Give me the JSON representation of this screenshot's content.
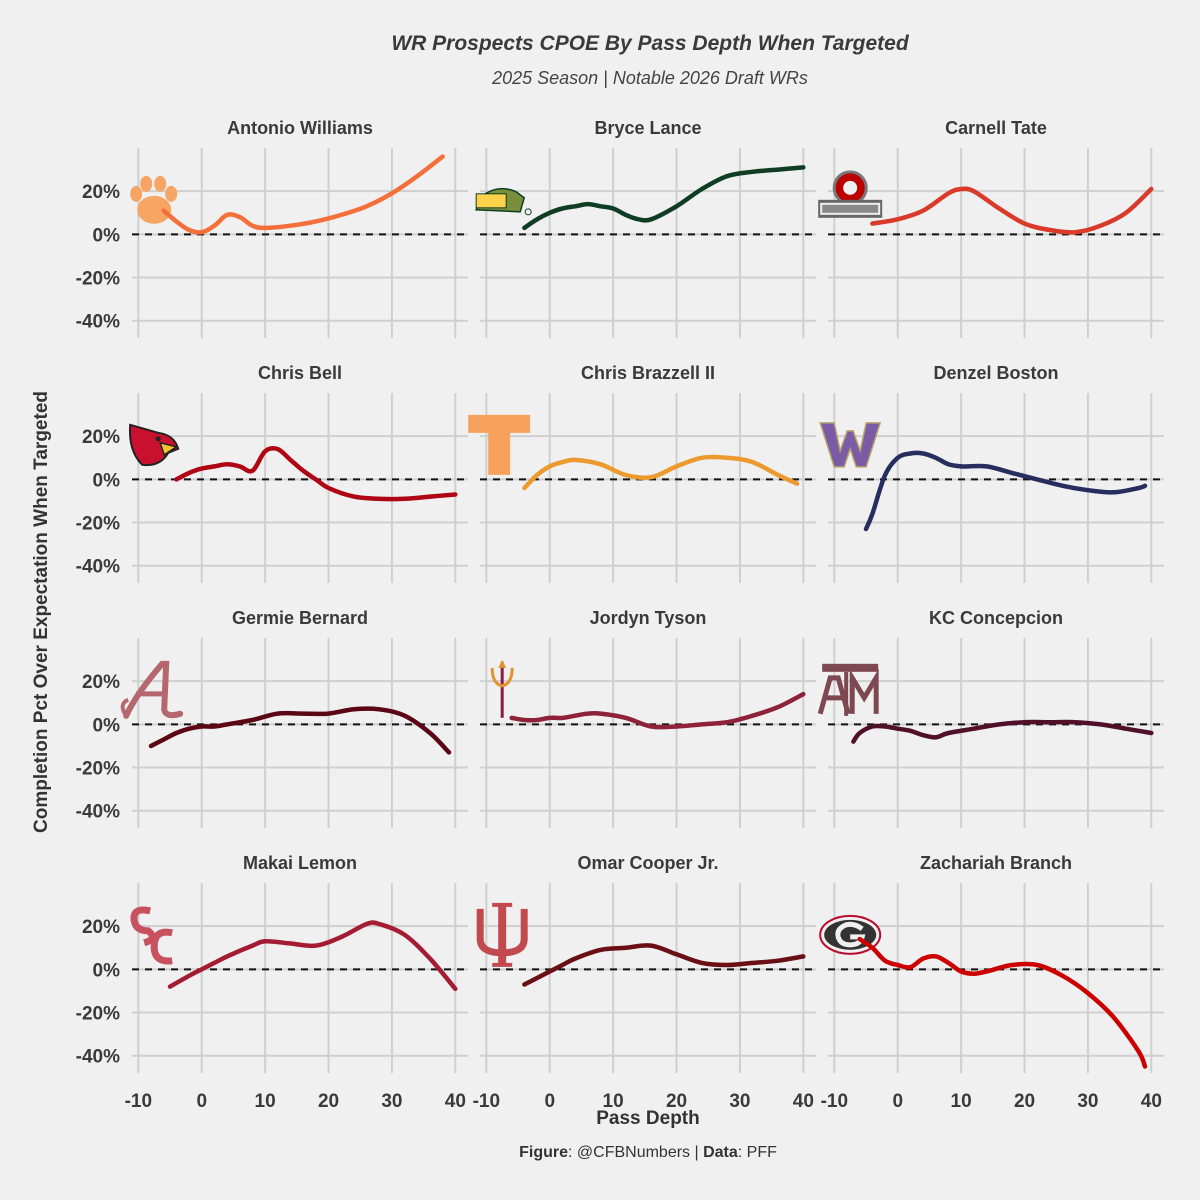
{
  "chart_data": {
    "type": "line",
    "title": "WR Prospects CPOE By Pass Depth When Targeted",
    "subtitle": "2025 Season | Notable 2026 Draft WRs",
    "xlabel": "Pass Depth",
    "ylabel": "Completion Pct Over Expectation When Targeted",
    "xlim": [
      -11,
      42
    ],
    "ylim": [
      -48,
      40
    ],
    "x_ticks": [
      -10,
      0,
      10,
      20,
      30,
      40
    ],
    "x_tick_labels": [
      "-10",
      "0",
      "10",
      "20",
      "30",
      "40"
    ],
    "y_ticks": [
      20,
      0,
      -20,
      -40
    ],
    "y_tick_labels": [
      "20%",
      "0%",
      "-20%",
      "-40%"
    ],
    "reference_line": 0,
    "grid": true,
    "panels": [
      {
        "name": "Antonio Williams",
        "color": "#f56f3a",
        "logo": "clemson-paw",
        "logo_color": "#f7a564",
        "x": [
          -6,
          -4,
          -2,
          0,
          2,
          4,
          6,
          8,
          10,
          14,
          18,
          22,
          26,
          30,
          34,
          38
        ],
        "y": [
          11,
          6,
          2,
          1,
          4,
          9,
          8,
          4,
          3,
          4,
          6,
          9,
          13,
          19,
          27,
          36
        ]
      },
      {
        "name": "Bryce Lance",
        "color": "#0f3d24",
        "logo": "ndsu-bison",
        "logo_color": "#7a8f3a",
        "x": [
          -4,
          -2,
          0,
          2,
          4,
          6,
          8,
          10,
          12,
          14,
          16,
          20,
          24,
          28,
          32,
          36,
          40
        ],
        "y": [
          3,
          7,
          10,
          12,
          13,
          14,
          13,
          12,
          9,
          7,
          7,
          13,
          21,
          27,
          29,
          30,
          31
        ]
      },
      {
        "name": "Carnell Tate",
        "color": "#d93a2a",
        "logo": "ohio-state",
        "logo_color": "#bb0000",
        "x": [
          -4,
          0,
          4,
          8,
          10,
          12,
          16,
          20,
          24,
          28,
          32,
          36,
          40
        ],
        "y": [
          5,
          7,
          11,
          19,
          21,
          20,
          12,
          5,
          2,
          1,
          4,
          10,
          21
        ]
      },
      {
        "name": "Chris Bell",
        "color": "#b00514",
        "logo": "louisville-cardinal",
        "logo_color": "#c9102e",
        "x": [
          -4,
          -2,
          0,
          2,
          4,
          6,
          8,
          10,
          12,
          14,
          16,
          18,
          20,
          24,
          28,
          32,
          36,
          40
        ],
        "y": [
          0,
          3,
          5,
          6,
          7,
          6,
          4,
          13,
          14,
          9,
          4,
          0,
          -4,
          -8,
          -9,
          -9,
          -8,
          -7
        ]
      },
      {
        "name": "Chris Brazzell II",
        "color": "#ec9a2e",
        "logo": "tennessee-t",
        "logo_color": "#f7a25c",
        "x": [
          -4,
          -2,
          0,
          2,
          4,
          8,
          12,
          16,
          20,
          24,
          28,
          32,
          36,
          39
        ],
        "y": [
          -4,
          2,
          6,
          8,
          9,
          7,
          2,
          1,
          6,
          10,
          10,
          8,
          2,
          -2
        ]
      },
      {
        "name": "Denzel Boston",
        "color": "#262e5e",
        "logo": "washington-w",
        "logo_color": "#7b5aa6",
        "x": [
          -5,
          -4,
          -2,
          0,
          2,
          4,
          6,
          8,
          10,
          14,
          18,
          22,
          26,
          30,
          34,
          38,
          39
        ],
        "y": [
          -23,
          -16,
          2,
          10,
          12,
          12,
          10,
          7,
          6,
          6,
          3,
          0,
          -3,
          -5,
          -6,
          -4,
          -3
        ]
      },
      {
        "name": "Germie Bernard",
        "color": "#5c0615",
        "logo": "alabama-a",
        "logo_color": "#b5676e",
        "x": [
          -8,
          -6,
          -4,
          -2,
          0,
          2,
          4,
          8,
          12,
          16,
          20,
          24,
          28,
          32,
          36,
          39
        ],
        "y": [
          -10,
          -7,
          -4,
          -2,
          -1,
          -1,
          0,
          2,
          5,
          5,
          5,
          7,
          7,
          4,
          -4,
          -13
        ]
      },
      {
        "name": "Jordyn Tyson",
        "color": "#8e2238",
        "logo": "arizona-state-pitchfork",
        "logo_color": "#e29431",
        "x": [
          -6,
          -4,
          -2,
          0,
          2,
          4,
          6,
          8,
          12,
          16,
          20,
          24,
          28,
          32,
          36,
          40
        ],
        "y": [
          3,
          2,
          2,
          3,
          3,
          4,
          5,
          5,
          3,
          -1,
          -1,
          0,
          1,
          4,
          8,
          14
        ]
      },
      {
        "name": "KC Concepcion",
        "color": "#50102a",
        "logo": "texas-am",
        "logo_color": "#7d4851",
        "x": [
          -7,
          -6,
          -4,
          -2,
          0,
          2,
          4,
          6,
          8,
          12,
          16,
          20,
          24,
          28,
          32,
          36,
          40
        ],
        "y": [
          -8,
          -4,
          -1,
          -1,
          -2,
          -3,
          -5,
          -6,
          -4,
          -2,
          0,
          1,
          1,
          1,
          0,
          -2,
          -4
        ]
      },
      {
        "name": "Makai Lemon",
        "color": "#a41c34",
        "logo": "usc-sc",
        "logo_color": "#c8515f",
        "x": [
          -5,
          -2,
          0,
          2,
          4,
          8,
          10,
          14,
          18,
          22,
          26,
          28,
          32,
          36,
          40
        ],
        "y": [
          -8,
          -3,
          0,
          3,
          6,
          11,
          13,
          12,
          11,
          15,
          21,
          21,
          16,
          5,
          -9
        ]
      },
      {
        "name": "Omar Cooper Jr.",
        "color": "#6b0f16",
        "logo": "indiana-iu",
        "logo_color": "#c14a4f",
        "x": [
          -4,
          -2,
          0,
          2,
          4,
          8,
          12,
          16,
          20,
          24,
          28,
          32,
          36,
          40
        ],
        "y": [
          -7,
          -4,
          -1,
          2,
          5,
          9,
          10,
          11,
          7,
          3,
          2,
          3,
          4,
          6
        ]
      },
      {
        "name": "Zachariah Branch",
        "color": "#cc0000",
        "logo": "georgia-g",
        "logo_color": "#ba0c2f",
        "x": [
          -6,
          -4,
          -2,
          0,
          2,
          4,
          6,
          8,
          10,
          12,
          14,
          18,
          22,
          26,
          30,
          34,
          38,
          39
        ],
        "y": [
          14,
          10,
          4,
          2,
          1,
          5,
          6,
          3,
          -1,
          -2,
          -1,
          2,
          2,
          -3,
          -11,
          -22,
          -38,
          -45
        ]
      }
    ]
  },
  "caption": {
    "figure_label": "Figure",
    "figure_value": ": @CFBNumbers | ",
    "data_label": "Data",
    "data_value": ": PFF"
  }
}
